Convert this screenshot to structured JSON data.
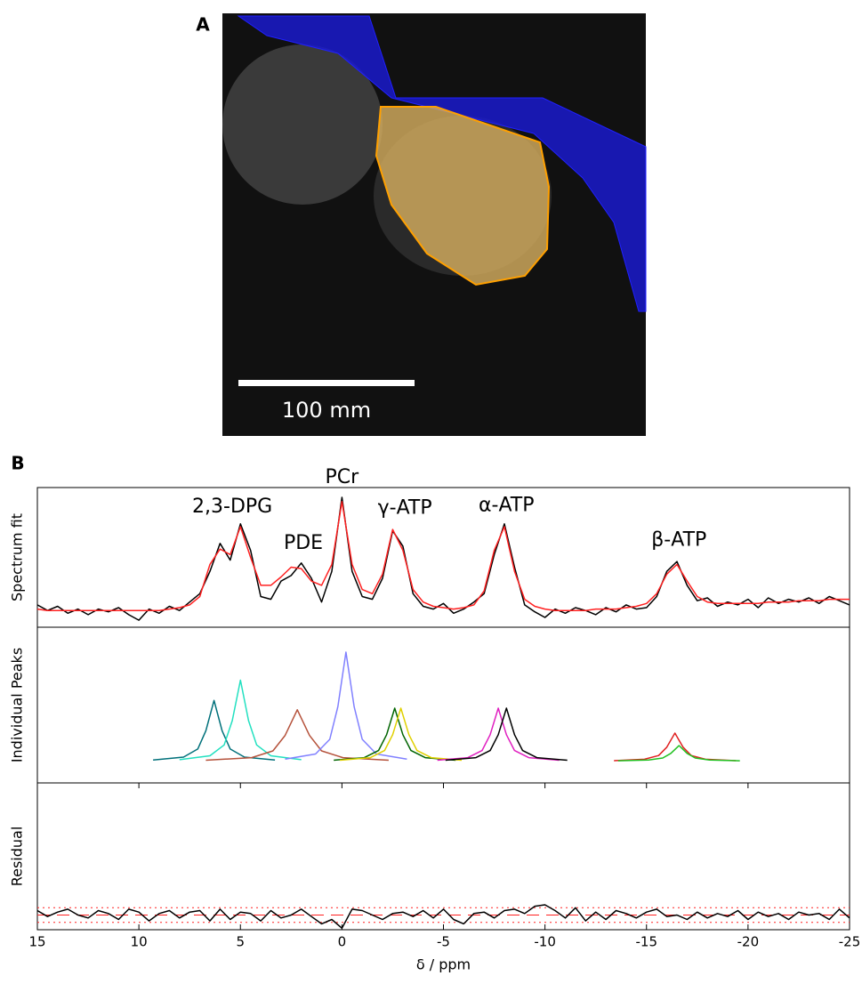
{
  "panel_labels": [
    "A",
    "B"
  ],
  "scale_bar_label": "100 mm",
  "chart_data": [
    {
      "type": "line",
      "ylabel": "Spectrum fit",
      "xlim": [
        15,
        -25
      ],
      "ylim": [
        0,
        1
      ],
      "x": [
        15,
        14.5,
        14,
        13.5,
        13,
        12.5,
        12,
        11.5,
        11,
        10.5,
        10,
        9.5,
        9,
        8.5,
        8,
        7.5,
        7,
        6.5,
        6,
        5.5,
        5,
        4.5,
        4,
        3.5,
        3,
        2.5,
        2,
        1.5,
        1,
        0.5,
        0,
        -0.5,
        -1,
        -1.5,
        -2,
        -2.5,
        -3,
        -3.5,
        -4,
        -4.5,
        -5,
        -5.5,
        -6,
        -6.5,
        -7,
        -7.5,
        -8,
        -8.5,
        -9,
        -9.5,
        -10,
        -10.5,
        -11,
        -11.5,
        -12,
        -12.5,
        -13,
        -13.5,
        -14,
        -14.5,
        -15,
        -15.5,
        -16,
        -16.5,
        -17,
        -17.5,
        -18,
        -18.5,
        -19,
        -19.5,
        -20,
        -20.5,
        -21,
        -21.5,
        -22,
        -22.5,
        -23,
        -23.5,
        -24,
        -24.5,
        -25
      ],
      "series": [
        {
          "color": "#000000",
          "values": [
            0.16,
            0.12,
            0.15,
            0.1,
            0.13,
            0.09,
            0.13,
            0.11,
            0.14,
            0.09,
            0.05,
            0.13,
            0.1,
            0.15,
            0.12,
            0.18,
            0.24,
            0.4,
            0.6,
            0.48,
            0.74,
            0.55,
            0.22,
            0.2,
            0.33,
            0.37,
            0.46,
            0.35,
            0.18,
            0.4,
            0.93,
            0.4,
            0.22,
            0.2,
            0.35,
            0.69,
            0.58,
            0.24,
            0.15,
            0.13,
            0.17,
            0.1,
            0.13,
            0.18,
            0.24,
            0.52,
            0.74,
            0.43,
            0.16,
            0.11,
            0.07,
            0.13,
            0.1,
            0.14,
            0.12,
            0.09,
            0.14,
            0.11,
            0.16,
            0.13,
            0.14,
            0.22,
            0.4,
            0.47,
            0.3,
            0.19,
            0.21,
            0.15,
            0.18,
            0.16,
            0.2,
            0.14,
            0.21,
            0.17,
            0.2,
            0.18,
            0.21,
            0.17,
            0.22,
            0.19,
            0.16
          ]
        },
        {
          "color": "#ff2020",
          "values": [
            0.13,
            0.12,
            0.12,
            0.12,
            0.12,
            0.12,
            0.12,
            0.12,
            0.12,
            0.12,
            0.12,
            0.12,
            0.12,
            0.13,
            0.14,
            0.16,
            0.22,
            0.45,
            0.56,
            0.52,
            0.72,
            0.5,
            0.3,
            0.3,
            0.36,
            0.43,
            0.42,
            0.33,
            0.3,
            0.45,
            0.9,
            0.45,
            0.27,
            0.24,
            0.38,
            0.7,
            0.55,
            0.27,
            0.18,
            0.15,
            0.14,
            0.13,
            0.14,
            0.16,
            0.26,
            0.55,
            0.72,
            0.4,
            0.2,
            0.15,
            0.13,
            0.12,
            0.12,
            0.12,
            0.12,
            0.13,
            0.13,
            0.13,
            0.14,
            0.15,
            0.17,
            0.24,
            0.38,
            0.45,
            0.33,
            0.22,
            0.18,
            0.17,
            0.17,
            0.17,
            0.17,
            0.17,
            0.18,
            0.18,
            0.18,
            0.19,
            0.19,
            0.19,
            0.2,
            0.2,
            0.2
          ]
        }
      ],
      "annotations": [
        {
          "text": "2,3-DPG",
          "x": 5.4,
          "y": 0.86
        },
        {
          "text": "PDE",
          "x": 1.9,
          "y": 0.6
        },
        {
          "text": "PCr",
          "x": 0,
          "y": 1.07
        },
        {
          "text": "γ-ATP",
          "x": -3.1,
          "y": 0.85
        },
        {
          "text": "α-ATP",
          "x": -8.1,
          "y": 0.87
        },
        {
          "text": "β-ATP",
          "x": -16.6,
          "y": 0.62
        }
      ]
    },
    {
      "type": "line",
      "ylabel": "Individual Peaks",
      "xlim": [
        15,
        -25
      ],
      "ylim": [
        0,
        1
      ],
      "series": [
        {
          "color": "#00707a",
          "x": [
            9.3,
            7.8,
            7.1,
            6.7,
            6.3,
            5.9,
            5.5,
            4.8,
            3.3
          ],
          "values": [
            0.147,
            0.166,
            0.218,
            0.335,
            0.53,
            0.335,
            0.218,
            0.166,
            0.147
          ]
        },
        {
          "color": "#22e0c0",
          "x": [
            8,
            6.5,
            5.8,
            5.4,
            5,
            4.6,
            4.2,
            3.5,
            2
          ],
          "values": [
            0.149,
            0.174,
            0.244,
            0.4,
            0.66,
            0.4,
            0.244,
            0.174,
            0.149
          ]
        },
        {
          "color": "#b5523b",
          "x": [
            6.7,
            4.45,
            3.4,
            2.8,
            2.2,
            1.6,
            1,
            -0.05,
            -2.3
          ],
          "values": [
            0.146,
            0.162,
            0.206,
            0.305,
            0.47,
            0.305,
            0.206,
            0.162,
            0.146
          ]
        },
        {
          "color": "#8080ff",
          "x": [
            2.8,
            1.3,
            0.6,
            0.2,
            -0.2,
            -0.6,
            -1,
            -1.7,
            -3.2
          ],
          "values": [
            0.153,
            0.186,
            0.28,
            0.49,
            0.84,
            0.49,
            0.28,
            0.186,
            0.153
          ]
        },
        {
          "color": "#006400",
          "x": [
            0.4,
            -1.1,
            -1.8,
            -2.2,
            -2.6,
            -3,
            -3.4,
            -4.1,
            -5.6
          ],
          "values": [
            0.146,
            0.162,
            0.208,
            0.31,
            0.48,
            0.31,
            0.208,
            0.162,
            0.146
          ]
        },
        {
          "color": "#e0d000",
          "x": [
            0.1,
            -1.4,
            -2.1,
            -2.5,
            -2.9,
            -3.3,
            -3.7,
            -4.4,
            -5.9
          ],
          "values": [
            0.146,
            0.162,
            0.208,
            0.31,
            0.48,
            0.31,
            0.208,
            0.162,
            0.146
          ]
        },
        {
          "color": "#e020c0",
          "x": [
            -4.7,
            -6.2,
            -6.9,
            -7.3,
            -7.7,
            -8.1,
            -8.5,
            -9.2,
            -10.7
          ],
          "values": [
            0.146,
            0.162,
            0.208,
            0.31,
            0.48,
            0.31,
            0.208,
            0.162,
            0.146
          ]
        },
        {
          "color": "#000000",
          "x": [
            -5.1,
            -6.6,
            -7.3,
            -7.7,
            -8.1,
            -8.5,
            -8.9,
            -9.6,
            -11.1
          ],
          "values": [
            0.146,
            0.162,
            0.208,
            0.31,
            0.48,
            0.31,
            0.208,
            0.162,
            0.146
          ]
        },
        {
          "color": "#e02020",
          "x": [
            -13.4,
            -14.9,
            -15.6,
            -16,
            -16.4,
            -16.8,
            -17.2,
            -17.9,
            -19.4
          ],
          "values": [
            0.143,
            0.152,
            0.176,
            0.23,
            0.32,
            0.23,
            0.176,
            0.152,
            0.143
          ]
        },
        {
          "color": "#20c020",
          "x": [
            -13.6,
            -15.1,
            -15.8,
            -16.2,
            -16.6,
            -17,
            -17.4,
            -18.1,
            -19.6
          ],
          "values": [
            0.142,
            0.147,
            0.16,
            0.19,
            0.24,
            0.19,
            0.16,
            0.147,
            0.142
          ]
        }
      ]
    },
    {
      "type": "line",
      "ylabel": "Residual",
      "xlabel": "δ / ppm",
      "xlim": [
        15,
        -25
      ],
      "ylim": [
        -0.1,
        0.9
      ],
      "xticks": [
        15,
        10,
        5,
        0,
        -5,
        -10,
        -15,
        -20,
        -25
      ],
      "reference_color": "#ff2020",
      "zero_line": 0,
      "noise_band": [
        -0.05,
        0.05
      ],
      "x": [
        15,
        14.5,
        14,
        13.5,
        13,
        12.5,
        12,
        11.5,
        11,
        10.5,
        10,
        9.5,
        9,
        8.5,
        8,
        7.5,
        7,
        6.5,
        6,
        5.5,
        5,
        4.5,
        4,
        3.5,
        3,
        2.5,
        2,
        1.5,
        1,
        0.5,
        0,
        -0.5,
        -1,
        -1.5,
        -2,
        -2.5,
        -3,
        -3.5,
        -4,
        -4.5,
        -5,
        -5.5,
        -6,
        -6.5,
        -7,
        -7.5,
        -8,
        -8.5,
        -9,
        -9.5,
        -10,
        -10.5,
        -11,
        -11.5,
        -12,
        -12.5,
        -13,
        -13.5,
        -14,
        -14.5,
        -15,
        -15.5,
        -16,
        -16.5,
        -17,
        -17.5,
        -18,
        -18.5,
        -19,
        -19.5,
        -20,
        -20.5,
        -21,
        -21.5,
        -22,
        -22.5,
        -23,
        -23.5,
        -24,
        -24.5,
        -25
      ],
      "series": [
        {
          "color": "#000000",
          "values": [
            0.03,
            -0.01,
            0.02,
            0.04,
            0.0,
            -0.02,
            0.03,
            0.01,
            -0.03,
            0.04,
            0.02,
            -0.04,
            0.01,
            0.03,
            -0.02,
            0.02,
            0.03,
            -0.04,
            0.04,
            -0.03,
            0.02,
            0.01,
            -0.04,
            0.03,
            -0.02,
            0.0,
            0.04,
            -0.01,
            -0.06,
            -0.03,
            -0.09,
            0.04,
            0.03,
            0.0,
            -0.03,
            0.01,
            0.02,
            -0.01,
            0.03,
            -0.02,
            0.04,
            -0.03,
            -0.06,
            0.01,
            0.02,
            -0.02,
            0.03,
            0.04,
            0.01,
            0.06,
            0.07,
            0.03,
            -0.02,
            0.05,
            -0.04,
            0.02,
            -0.03,
            0.03,
            0.01,
            -0.02,
            0.02,
            0.04,
            -0.01,
            0.0,
            -0.03,
            0.02,
            -0.02,
            0.01,
            -0.01,
            0.03,
            -0.03,
            0.02,
            -0.01,
            0.01,
            -0.03,
            0.02,
            0.0,
            0.01,
            -0.03,
            0.04,
            -0.02
          ]
        }
      ]
    }
  ]
}
